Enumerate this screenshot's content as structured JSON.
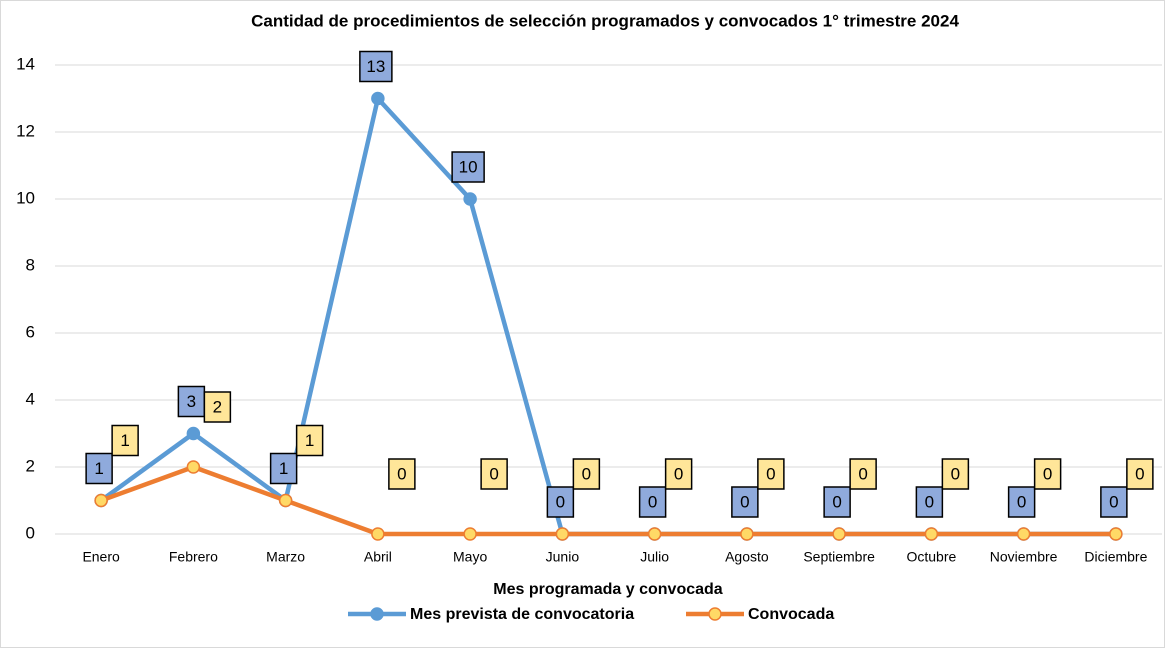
{
  "chart_data": {
    "type": "line",
    "title": "Cantidad de procedimientos de selección programados y convocados 1° trimestre 2024",
    "x_label": "Mes programada y convocada",
    "categories": [
      "Enero",
      "Febrero",
      "Marzo",
      "Abril",
      "Mayo",
      "Junio",
      "Julio",
      "Agosto",
      "Septiembre",
      "Octubre",
      "Noviembre",
      "Diciembre"
    ],
    "series": [
      {
        "name": "Mes prevista de convocatoria",
        "color": "#5b9bd5",
        "label_color": "#8faadc",
        "values": [
          1,
          3,
          1,
          13,
          10,
          0,
          0,
          0,
          0,
          0,
          0,
          0
        ]
      },
      {
        "name": "Convocada",
        "color": "#ed7d31",
        "marker_color": "#ffd966",
        "label_color": "#ffe699",
        "values": [
          1,
          2,
          1,
          0,
          0,
          0,
          0,
          0,
          0,
          0,
          0,
          0
        ]
      }
    ],
    "ylim": [
      0,
      14
    ],
    "yticks": [
      0,
      2,
      4,
      6,
      8,
      10,
      12,
      14
    ],
    "grid": true
  }
}
